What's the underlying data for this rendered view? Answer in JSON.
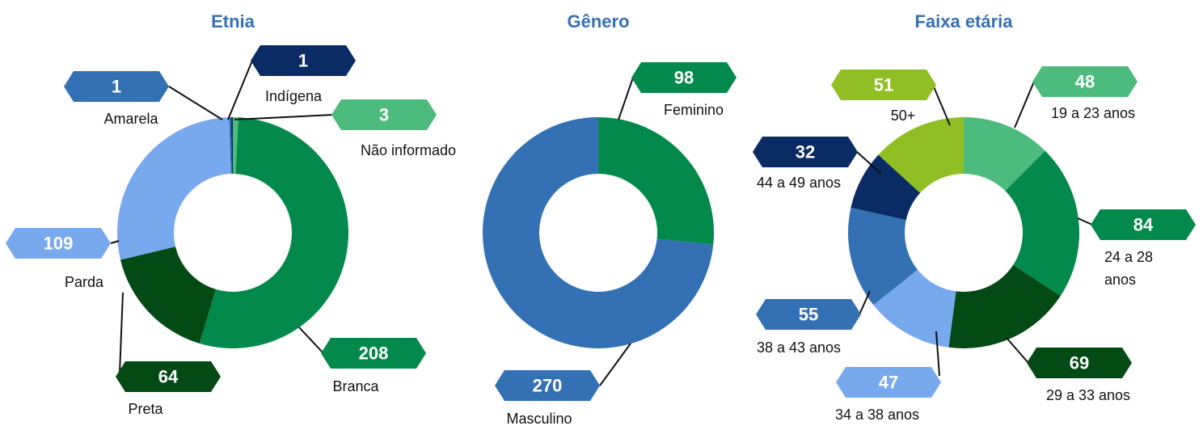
{
  "chart_data": [
    {
      "type": "pie",
      "title": "Etnia",
      "categories": [
        "Não informado",
        "Branca",
        "Preta",
        "Parda",
        "Amarela",
        "Indígena"
      ],
      "values": [
        3,
        208,
        64,
        109,
        1,
        1
      ],
      "colors": [
        "#4dbb7b",
        "#038a4a",
        "#034a14",
        "#78a9ef",
        "#3470b4",
        "#0a2b63"
      ]
    },
    {
      "type": "pie",
      "title": "Gênero",
      "categories": [
        "Feminino",
        "Masculino"
      ],
      "values": [
        98,
        270
      ],
      "colors": [
        "#038a4a",
        "#3470b4"
      ]
    },
    {
      "type": "pie",
      "title": "Faixa etária",
      "categories": [
        "19 a 23 anos",
        "24 a 28 anos",
        "29 a 33 anos",
        "34 a 38 anos",
        "38 a 43 anos",
        "44 a 49 anos",
        "50+"
      ],
      "values": [
        48,
        84,
        69,
        47,
        55,
        32,
        51
      ],
      "colors": [
        "#4dbb7b",
        "#038a4a",
        "#034a14",
        "#78a9ef",
        "#3470b4",
        "#0a2b63",
        "#8fbf23"
      ]
    }
  ]
}
